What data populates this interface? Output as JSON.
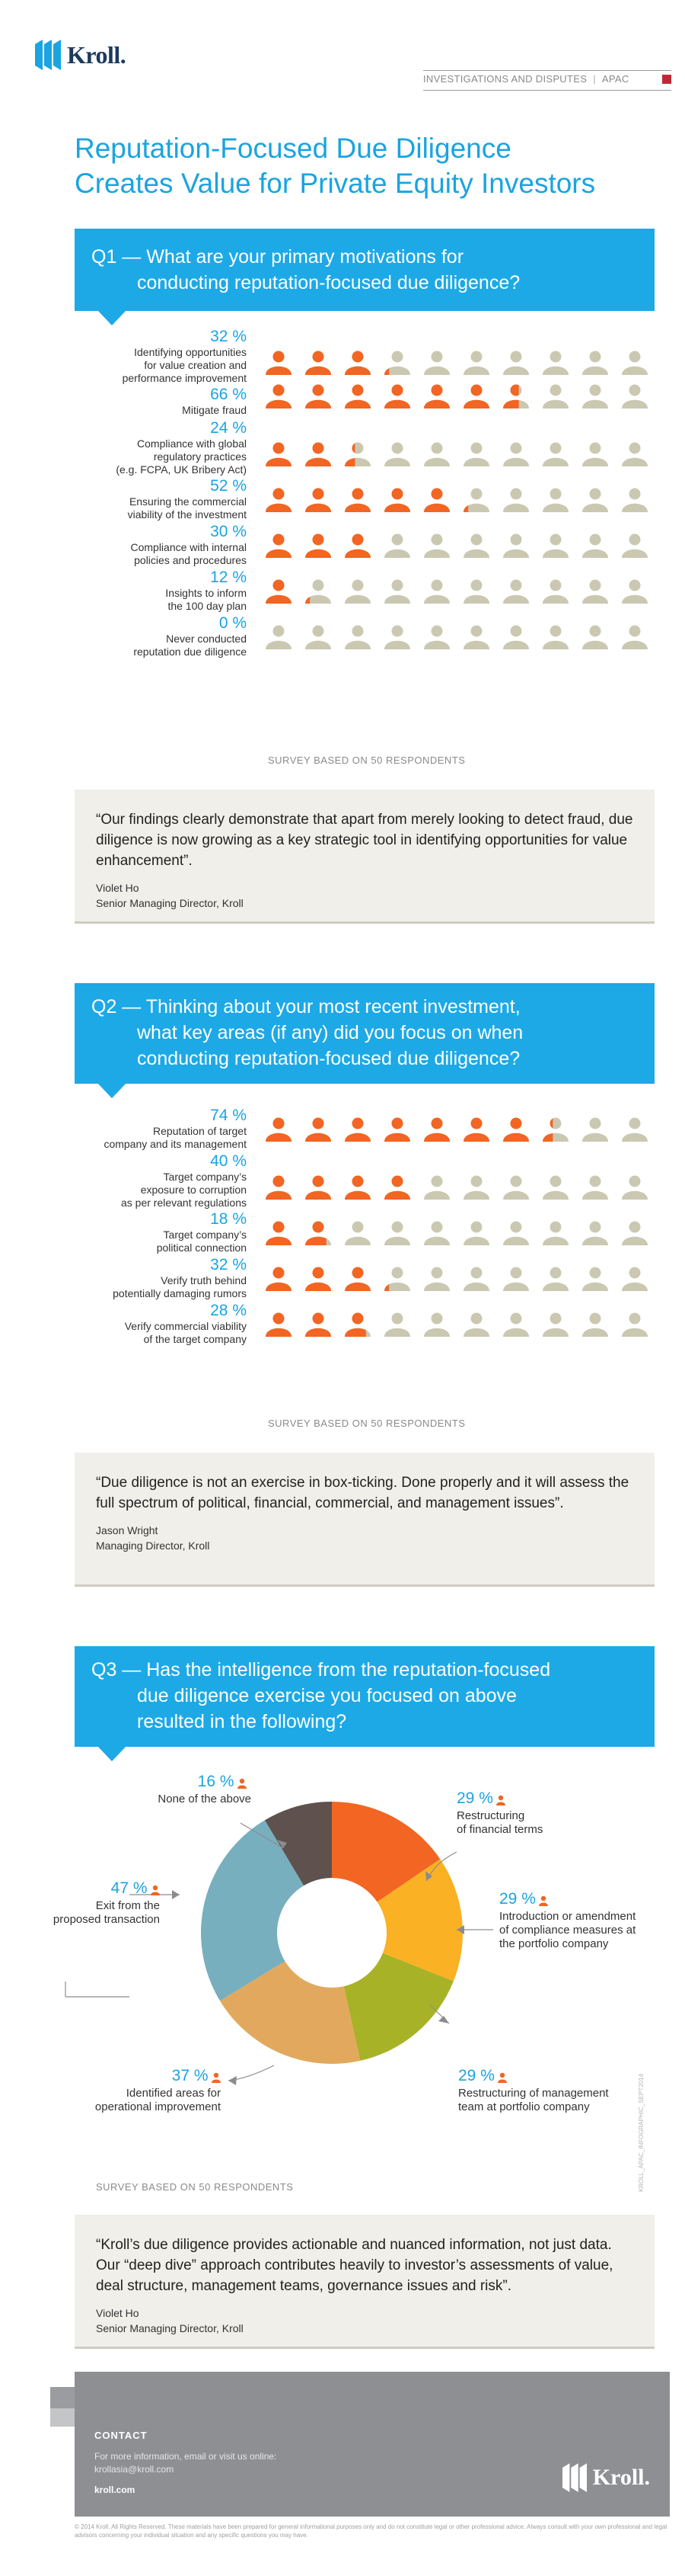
{
  "header": {
    "brand": "Kroll.",
    "section": "INVESTIGATIONS AND DISPUTES",
    "region": "APAC"
  },
  "title_line1": "Reputation-Focused Due Diligence",
  "title_line2": "Creates Value for Private Equity Investors",
  "colors": {
    "accent": "#1da9e6",
    "orange": "#f26522",
    "beige": "#cbc8b2",
    "brand_red": "#c0283a"
  },
  "q1": {
    "line1": "Q1 — What are your primary motivations for",
    "line2": "conducting reputation-focused due diligence?",
    "survey": "SURVEY BASED ON 50 RESPONDENTS",
    "rows": [
      {
        "pct": "32 %",
        "lines": [
          "Identifying opportunities",
          "for value creation and",
          "performance improvement"
        ]
      },
      {
        "pct": "66 %",
        "lines": [
          "Mitigate fraud"
        ]
      },
      {
        "pct": "24 %",
        "lines": [
          "Compliance with global",
          "regulatory practices",
          "(e.g. FCPA, UK Bribery Act)"
        ]
      },
      {
        "pct": "52 %",
        "lines": [
          "Ensuring the commercial",
          "viability of the investment"
        ]
      },
      {
        "pct": "30 %",
        "lines": [
          "Compliance with internal",
          "policies and procedures"
        ]
      },
      {
        "pct": "12 %",
        "lines": [
          "Insights to inform",
          "the 100 day plan"
        ]
      },
      {
        "pct": "0 %",
        "lines": [
          "Never conducted",
          "reputation due diligence"
        ]
      }
    ]
  },
  "quote1": {
    "text": "“Our findings clearly demonstrate that apart from merely looking to detect fraud, due diligence is now growing as a key strategic tool in identifying opportunities for value enhancement”.",
    "name": "Violet Ho",
    "role": "Senior Managing Director, Kroll"
  },
  "q2": {
    "line1": "Q2 — Thinking about your most recent investment,",
    "line2": "what key areas (if any) did you focus on when",
    "line3": "conducting reputation-focused due diligence?",
    "survey": "SURVEY BASED ON 50 RESPONDENTS",
    "rows": [
      {
        "pct": "74 %",
        "lines": [
          "Reputation of target",
          "company and its management"
        ]
      },
      {
        "pct": "40 %",
        "lines": [
          "Target company’s",
          "exposure to corruption",
          "as per relevant regulations"
        ]
      },
      {
        "pct": "18 %",
        "lines": [
          "Target company’s",
          "political connection"
        ]
      },
      {
        "pct": "32 %",
        "lines": [
          "Verify truth behind",
          "potentially damaging rumors"
        ]
      },
      {
        "pct": "28 %",
        "lines": [
          "Verify commercial viability",
          "of the target company"
        ]
      }
    ]
  },
  "quote2": {
    "text": "“Due diligence is not an exercise in box-ticking. Done properly and it will assess the full spectrum of political, financial, commercial, and management issues”.",
    "name": "Jason Wright",
    "role": "Managing Director, Kroll"
  },
  "q3": {
    "line1": "Q3 — Has the intelligence from the reputation-focused",
    "line2": "due diligence exercise you focused on above",
    "line3": "resulted in the following?",
    "survey": "SURVEY BASED ON 50 RESPONDENTS",
    "labels": {
      "none": {
        "pct": "16 %",
        "lines": [
          "None of the above"
        ]
      },
      "restructuring_fin": {
        "pct": "29 %",
        "lines": [
          "Restructuring",
          "of financial terms"
        ]
      },
      "compliance": {
        "pct": "29 %",
        "lines": [
          "Introduction or amendment",
          "of compliance measures at",
          "the portfolio company"
        ]
      },
      "management": {
        "pct": "29 %",
        "lines": [
          "Restructuring of management",
          "team at portfolio company"
        ]
      },
      "operational": {
        "pct": "37 %",
        "lines": [
          "Identified areas for",
          "operational improvement"
        ]
      },
      "exit": {
        "pct": "47 %",
        "lines": [
          "Exit from the",
          "proposed transaction"
        ]
      }
    }
  },
  "quote3": {
    "text": "“Kroll’s due diligence provides actionable and nuanced information, not just data. Our “deep dive” approach contributes heavily to investor’s assessments of value, deal structure, management teams, governance issues and risk”.",
    "name": "Violet Ho",
    "role": "Senior Managing Director, Kroll"
  },
  "footer": {
    "contact": "CONTACT",
    "line1": "For more information, email or visit us online:",
    "email": "krollasia@kroll.com",
    "site": "kroll.com",
    "brand": "Kroll.",
    "legal": "© 2014 Kroll. All Rights Reserved. These materials have been prepared for general informational purposes only and do not constitute legal or other professional advice. Always consult with your own professional and legal advisors concerning your individual situation and any specific questions you may have.",
    "vertical": "KROLL_APAC_INFOGRAPHIC_SEPT2014"
  },
  "chart_data": [
    {
      "type": "bar",
      "title": "Q1 — What are your primary motivations for conducting reputation-focused due diligence?",
      "categories": [
        "Identifying opportunities for value creation and performance improvement",
        "Mitigate fraud",
        "Compliance with global regulatory practices (e.g. FCPA, UK Bribery Act)",
        "Ensuring the commercial viability of the investment",
        "Compliance with internal policies and procedures",
        "Insights to inform the 100 day plan",
        "Never conducted reputation due diligence"
      ],
      "values": [
        32,
        66,
        24,
        52,
        30,
        12,
        0
      ],
      "ylim": [
        0,
        100
      ]
    },
    {
      "type": "bar",
      "title": "Q2 — Thinking about your most recent investment, what key areas (if any) did you focus on when conducting reputation-focused due diligence?",
      "categories": [
        "Reputation of target company and its management",
        "Target company’s exposure to corruption as per relevant regulations",
        "Target company’s political connection",
        "Verify truth behind potentially damaging rumors",
        "Verify commercial viability of the target company"
      ],
      "values": [
        74,
        40,
        18,
        32,
        28
      ],
      "ylim": [
        0,
        100
      ]
    },
    {
      "type": "pie",
      "title": "Q3 — Has the intelligence from the reputation-focused due diligence exercise you focused on above resulted in the following?",
      "categories": [
        "Restructuring of financial terms",
        "Introduction or amendment of compliance measures at the portfolio company",
        "Restructuring of management team at portfolio company",
        "Identified areas for operational improvement",
        "Exit from the proposed transaction",
        "None of the above"
      ],
      "values": [
        29,
        29,
        29,
        37,
        47,
        16
      ],
      "colors": [
        "#f26522",
        "#fbb124",
        "#a8b227",
        "#e2a95e",
        "#78afbf",
        "#5e514e"
      ]
    }
  ]
}
